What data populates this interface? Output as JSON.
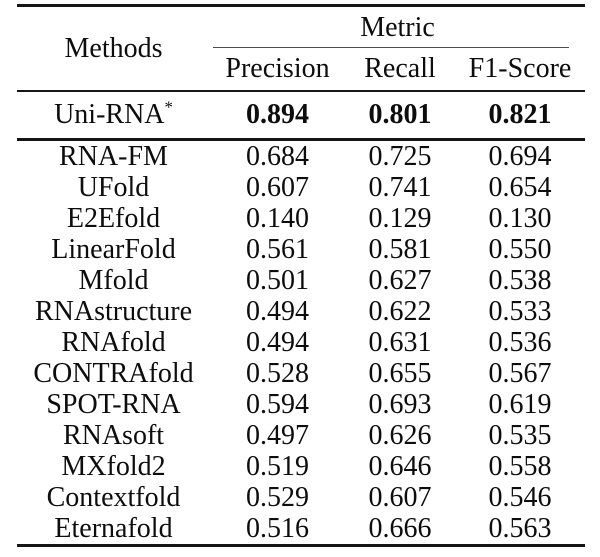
{
  "table": {
    "corner_header": "Methods",
    "group_header": "Metric",
    "columns": [
      "Precision",
      "Recall",
      "F1-Score"
    ],
    "highlight_row": {
      "method": "Uni-RNA",
      "superscript": "*",
      "values": [
        "0.894",
        "0.801",
        "0.821"
      ]
    },
    "rows": [
      {
        "method": "RNA-FM",
        "precision": "0.684",
        "recall": "0.725",
        "f1": "0.694"
      },
      {
        "method": "UFold",
        "precision": "0.607",
        "recall": "0.741",
        "f1": "0.654"
      },
      {
        "method": "E2Efold",
        "precision": "0.140",
        "recall": "0.129",
        "f1": "0.130"
      },
      {
        "method": "LinearFold",
        "precision": "0.561",
        "recall": "0.581",
        "f1": "0.550"
      },
      {
        "method": "Mfold",
        "precision": "0.501",
        "recall": "0.627",
        "f1": "0.538"
      },
      {
        "method": "RNAstructure",
        "precision": "0.494",
        "recall": "0.622",
        "f1": "0.533"
      },
      {
        "method": "RNAfold",
        "precision": "0.494",
        "recall": "0.631",
        "f1": "0.536"
      },
      {
        "method": "CONTRAfold",
        "precision": "0.528",
        "recall": "0.655",
        "f1": "0.567"
      },
      {
        "method": "SPOT-RNA",
        "precision": "0.594",
        "recall": "0.693",
        "f1": "0.619"
      },
      {
        "method": "RNAsoft",
        "precision": "0.497",
        "recall": "0.626",
        "f1": "0.535"
      },
      {
        "method": "MXfold2",
        "precision": "0.519",
        "recall": "0.646",
        "f1": "0.558"
      },
      {
        "method": "Contextfold",
        "precision": "0.529",
        "recall": "0.607",
        "f1": "0.546"
      },
      {
        "method": "Eternafold",
        "precision": "0.516",
        "recall": "0.666",
        "f1": "0.563"
      }
    ],
    "colors": {
      "text": "#0d0d0d",
      "rule": "#151515",
      "background": "#ffffff"
    }
  }
}
